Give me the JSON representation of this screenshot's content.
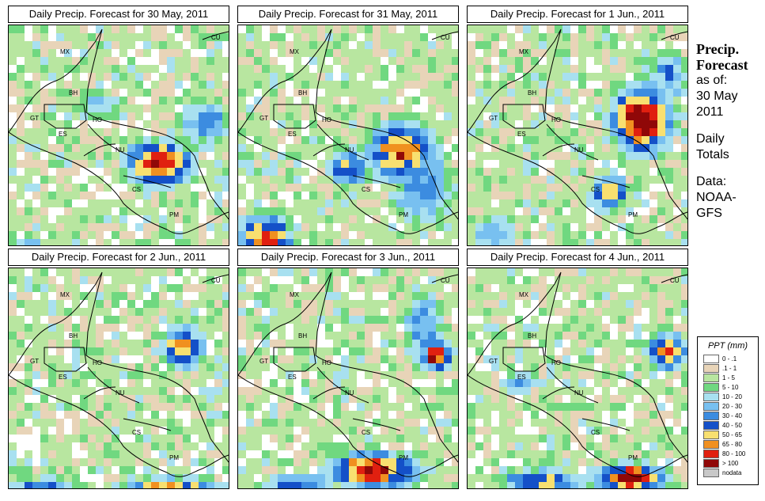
{
  "panels": [
    {
      "title": "Daily Precip. Forecast for  30 May, 2011"
    },
    {
      "title": "Daily Precip. Forecast for  31 May, 2011"
    },
    {
      "title": "Daily Precip. Forecast for  1 Jun., 2011"
    },
    {
      "title": "Daily Precip. Forecast for  2 Jun., 2011"
    },
    {
      "title": "Daily Precip. Forecast for  3 Jun., 2011"
    },
    {
      "title": "Daily Precip. Forecast for  4 Jun., 2011"
    }
  ],
  "map_labels": [
    "MX",
    "BH",
    "GT",
    "HO",
    "ES",
    "NU",
    "CS",
    "PM",
    "CU"
  ],
  "side": {
    "title_1": "Precip.",
    "title_2": "Forecast",
    "as_of": "as of:",
    "date_1": "30 May",
    "date_2": "2011",
    "daily": "Daily",
    "totals": "Totals",
    "data_label": "Data:",
    "source_1": "NOAA-",
    "source_2": "GFS"
  },
  "legend": {
    "title": "PPT (mm)",
    "items": [
      {
        "label": "0 - .1",
        "color": "#ffffff"
      },
      {
        "label": ".1 - 1",
        "color": "#e8d4b8"
      },
      {
        "label": "1 - 5",
        "color": "#b8e6a0"
      },
      {
        "label": "5 - 10",
        "color": "#70d880"
      },
      {
        "label": "10 - 20",
        "color": "#a8e0f0"
      },
      {
        "label": "20 - 30",
        "color": "#78c0f0"
      },
      {
        "label": "30 - 40",
        "color": "#3c8ce0"
      },
      {
        "label": "40 - 50",
        "color": "#1450c8"
      },
      {
        "label": "50 - 65",
        "color": "#f8e070"
      },
      {
        "label": "65 - 80",
        "color": "#f09020"
      },
      {
        "label": "80 - 100",
        "color": "#e02010"
      },
      {
        "label": "> 100",
        "color": "#900808"
      },
      {
        "label": "nodata",
        "color": "#c8c8c8"
      }
    ]
  }
}
